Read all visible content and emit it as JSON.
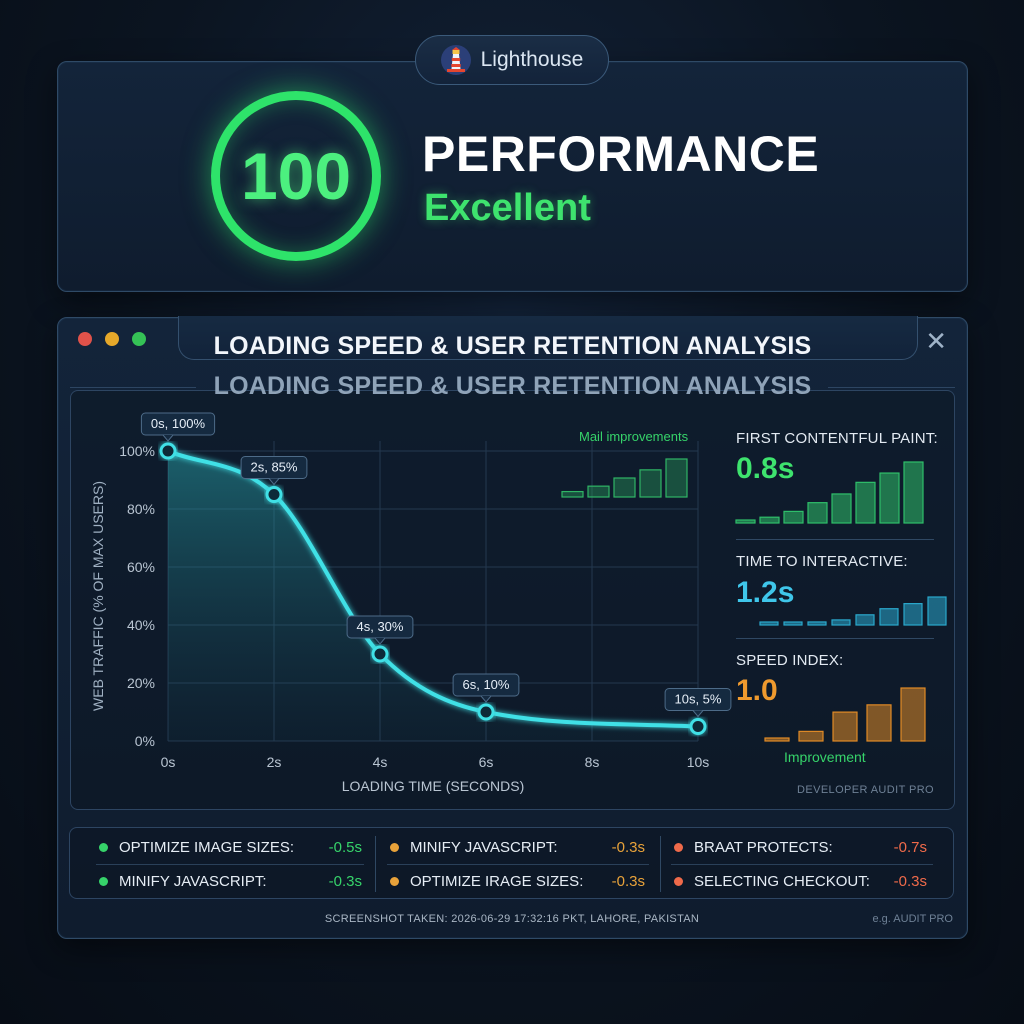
{
  "badge": {
    "label": "Lighthouse",
    "icon": "lighthouse-icon"
  },
  "score": {
    "value": "100",
    "title": "PERFORMANCE",
    "rating": "Excellent"
  },
  "window": {
    "title": "LOADING SPEED & USER RETENTION ANALYSIS",
    "subtitle": "LOADING SPEED & USER RETENTION ANALYSIS",
    "close_icon": "close-icon",
    "dots": [
      "#e0524a",
      "#e6a82a",
      "#35c256"
    ]
  },
  "chart_data": [
    {
      "type": "area",
      "xlabel": "LOADING TIME (SECONDS)",
      "ylabel": "WEB TRAFFIC (% OF MAX USERS)",
      "x_ticks": [
        "0s",
        "2s",
        "4s",
        "6s",
        "8s",
        "10s"
      ],
      "y_ticks": [
        "0%",
        "20%",
        "40%",
        "60%",
        "80%",
        "100%"
      ],
      "xlim": [
        0,
        10
      ],
      "ylim": [
        0,
        100
      ],
      "grid": true,
      "series": [
        {
          "x": [
            0,
            2,
            4,
            6,
            10
          ],
          "y": [
            100,
            85,
            30,
            10,
            5
          ],
          "labels": [
            "0s, 100%",
            "2s, 85%",
            "4s, 30%",
            "6s, 10%",
            "10s, 5%"
          ],
          "color": "#3fe0e6"
        }
      ]
    },
    {
      "type": "bar",
      "title": "Mail improvements",
      "values": [
        1,
        2,
        3.5,
        5,
        7
      ],
      "color": "#2fb565"
    },
    {
      "type": "bar",
      "title": "FIRST CONTENTFUL PAINT:",
      "values": [
        0.5,
        1,
        2,
        3.5,
        5,
        7,
        8.6,
        10.5
      ],
      "color": "#2fbf6a"
    },
    {
      "type": "bar",
      "title": "TIME TO INTERACTIVE:",
      "values": [
        0.3,
        0.4,
        0.6,
        1,
        2,
        3.2,
        4.2,
        5.5
      ],
      "color": "#2aa8cc"
    },
    {
      "type": "bar",
      "title": "SPEED INDEX:",
      "values": [
        0.5,
        2,
        6,
        7.5,
        11
      ],
      "color": "#e08a26"
    }
  ],
  "metrics": [
    {
      "label": "FIRST CONTENTFUL PAINT:",
      "value": "0.8s",
      "color": "#3ee36e"
    },
    {
      "label": "TIME TO INTERACTIVE:",
      "value": "1.2s",
      "color": "#3fc6ea"
    },
    {
      "label": "SPEED INDEX:",
      "value": "1.0",
      "color": "#ef9a2e"
    }
  ],
  "mini_chart_label": "Mail improvements",
  "improvement_label": "Improvement",
  "brand_label": "DEVELOPER AUDIT PRO",
  "improvements": [
    {
      "label": "OPTIMIZE IMAGE SIZES:",
      "value": "-0.5s",
      "color": "#36d36a"
    },
    {
      "label": "MINIFY JAVASCRIPT:",
      "value": "-0.3s",
      "color": "#36d36a"
    },
    {
      "label": "MINIFY JAVASCRIPT:",
      "value": "-0.3s",
      "color": "#e8a23a"
    },
    {
      "label": "OPTIMIZE IRAGE SIZES:",
      "value": "-0.3s",
      "color": "#e8a23a"
    },
    {
      "label": "BRAAT PROTECTS:",
      "value": "-0.7s",
      "color": "#ef6a4a"
    },
    {
      "label": "SELECTING CHECKOUT:",
      "value": "-0.3s",
      "color": "#ef6a4a"
    }
  ],
  "footer": "SCREENSHOT TAKEN: 2026-06-29 17:32:16 PKT, LAHORE, PAKISTAN",
  "footer_brand": "e.g. AUDIT PRO"
}
